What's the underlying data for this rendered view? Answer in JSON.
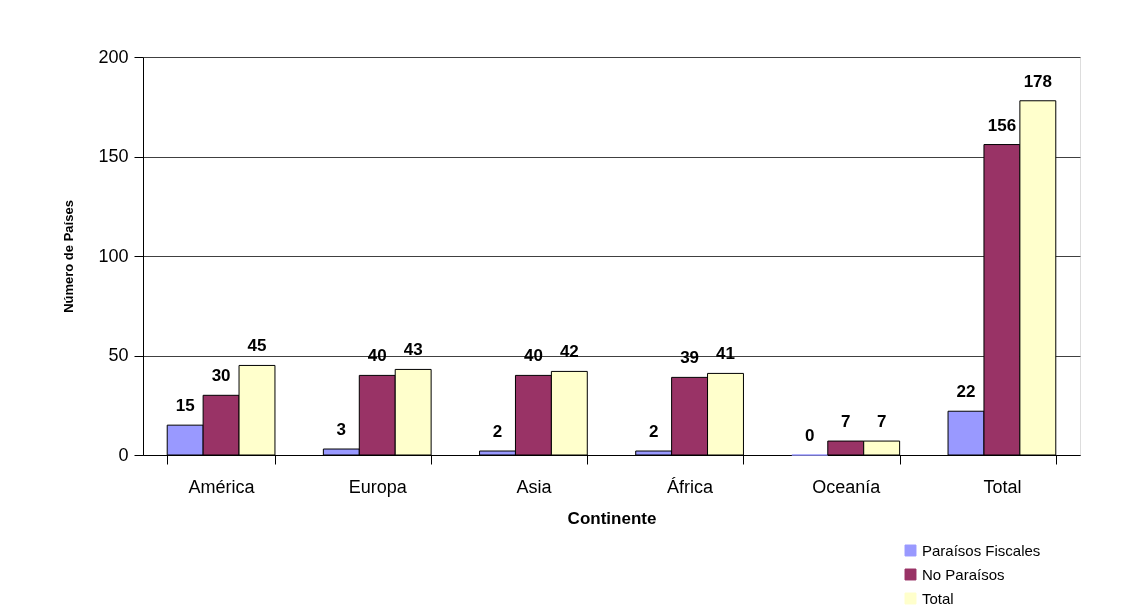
{
  "chart_data": {
    "type": "bar",
    "xlabel": "Continente",
    "ylabel": "Número de Países",
    "categories": [
      "América",
      "Europa",
      "Asia",
      "África",
      "Oceanía",
      "Total"
    ],
    "series": [
      {
        "name": "Paraísos Fiscales",
        "color": "#9999ff",
        "values": [
          15,
          3,
          2,
          2,
          0,
          22
        ]
      },
      {
        "name": "No Paraísos",
        "color": "#993366",
        "values": [
          30,
          40,
          40,
          39,
          7,
          156
        ]
      },
      {
        "name": "Total",
        "color": "#ffffcc",
        "values": [
          45,
          43,
          42,
          41,
          7,
          178
        ]
      }
    ],
    "ylim": [
      0,
      200
    ],
    "yticks": [
      0,
      50,
      100,
      150,
      200
    ],
    "grid": "y",
    "legend": "bottom right",
    "data_labels": true
  }
}
